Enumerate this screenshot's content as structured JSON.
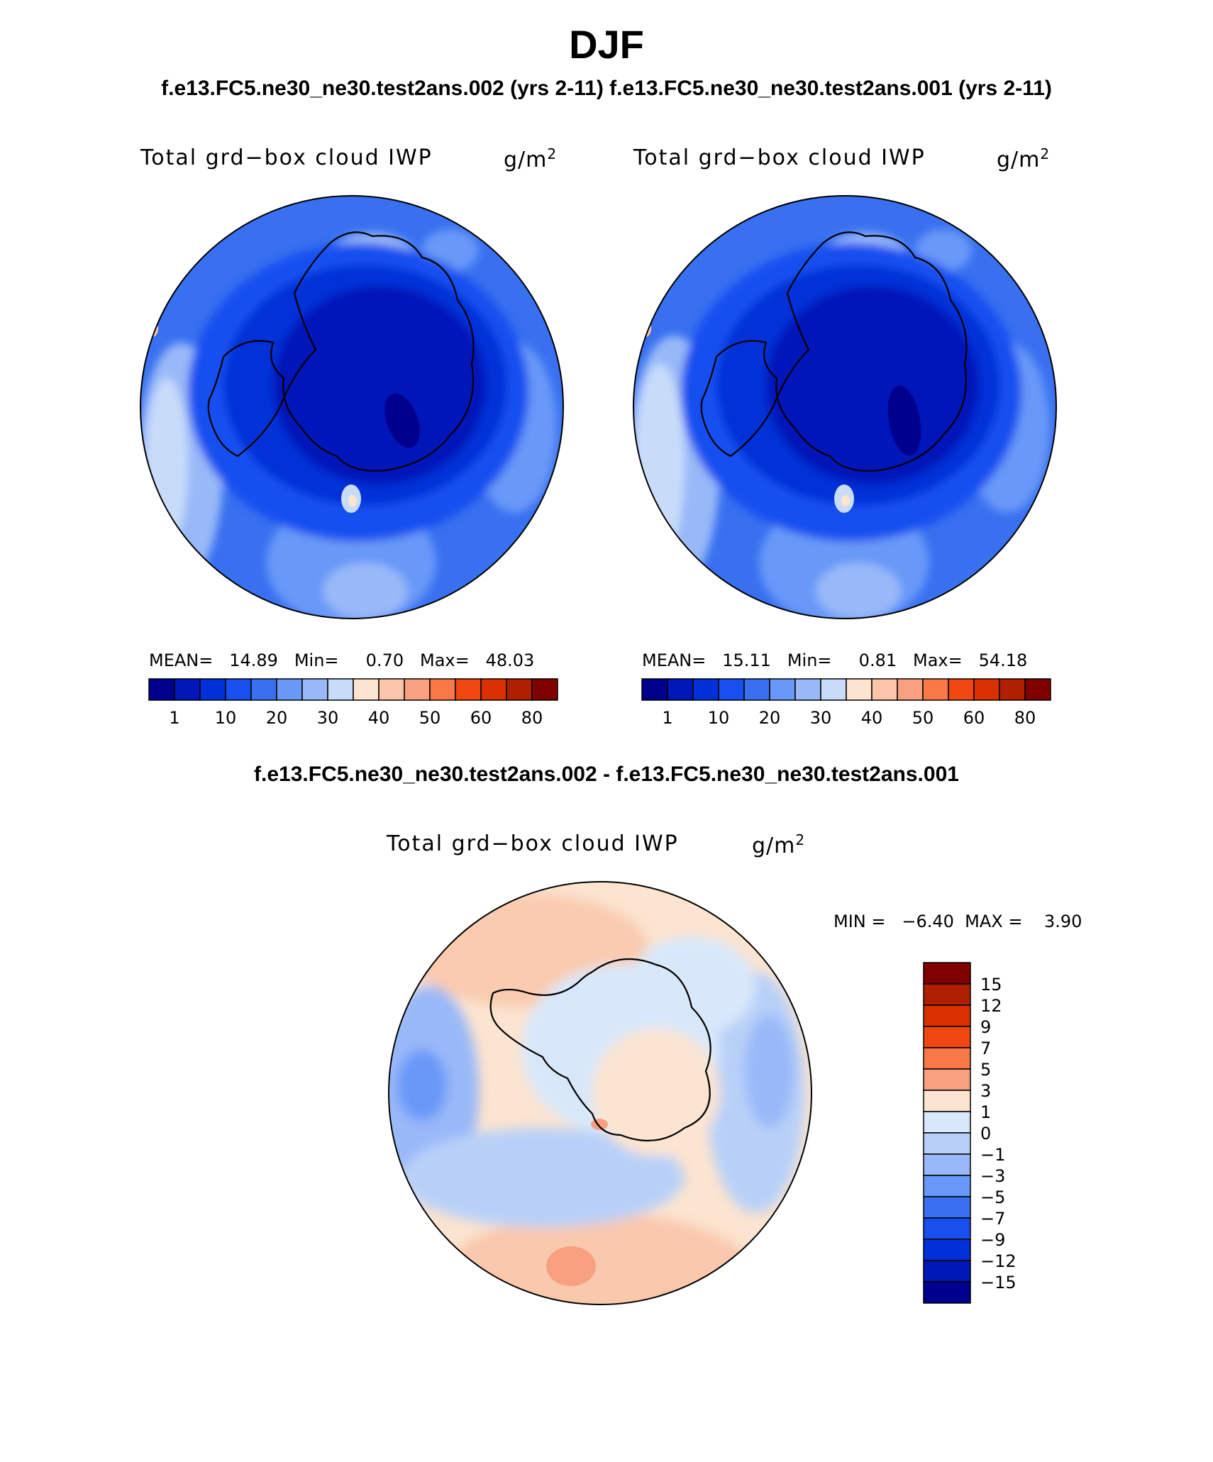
{
  "title": "DJF",
  "runs_line": "f.e13.FC5.ne30_ne30.test2ans.002 (yrs 2-11) f.e13.FC5.ne30_ne30.test2ans.001 (yrs 2-11)",
  "diff_title": "f.e13.FC5.ne30_ne30.test2ans.002 - f.e13.FC5.ne30_ne30.test2ans.001",
  "panels": [
    {
      "variable": "Total grd−box cloud IWP",
      "units_base": "g/m",
      "units_exp": "2",
      "stats": "MEAN=   14.89   Min=     0.70   Max=   48.03"
    },
    {
      "variable": "Total grd−box cloud IWP",
      "units_base": "g/m",
      "units_exp": "2",
      "stats": "MEAN=   15.11   Min=     0.81   Max=   54.18"
    },
    {
      "variable": "Total grd−box cloud IWP",
      "units_base": "g/m",
      "units_exp": "2",
      "stats": "MIN =   −6.40  MAX =    3.90"
    }
  ],
  "colorbar_main": {
    "colors": [
      "#00008f",
      "#0018b8",
      "#0030d8",
      "#1850f0",
      "#3870f0",
      "#6898f8",
      "#98b8f8",
      "#c8dcfa",
      "#fce4d0",
      "#fcc4a8",
      "#f8a080",
      "#f87848",
      "#f04810",
      "#d83000",
      "#b02000",
      "#800000"
    ],
    "labels": [
      "1",
      "10",
      "20",
      "30",
      "40",
      "50",
      "60",
      "80"
    ]
  },
  "colorbar_diff": {
    "colors": [
      "#800000",
      "#b02000",
      "#d83000",
      "#f04810",
      "#f87848",
      "#f8a080",
      "#fce4d0",
      "#d8e8fa",
      "#b8d0f8",
      "#98b8f8",
      "#6898f8",
      "#3870f0",
      "#1850f0",
      "#0030d8",
      "#0018b8",
      "#00008f"
    ],
    "labels": [
      "15",
      "12",
      "9",
      "7",
      "5",
      "3",
      "1",
      "0",
      "−1",
      "−3",
      "−5",
      "−7",
      "−9",
      "−12",
      "−15"
    ]
  }
}
